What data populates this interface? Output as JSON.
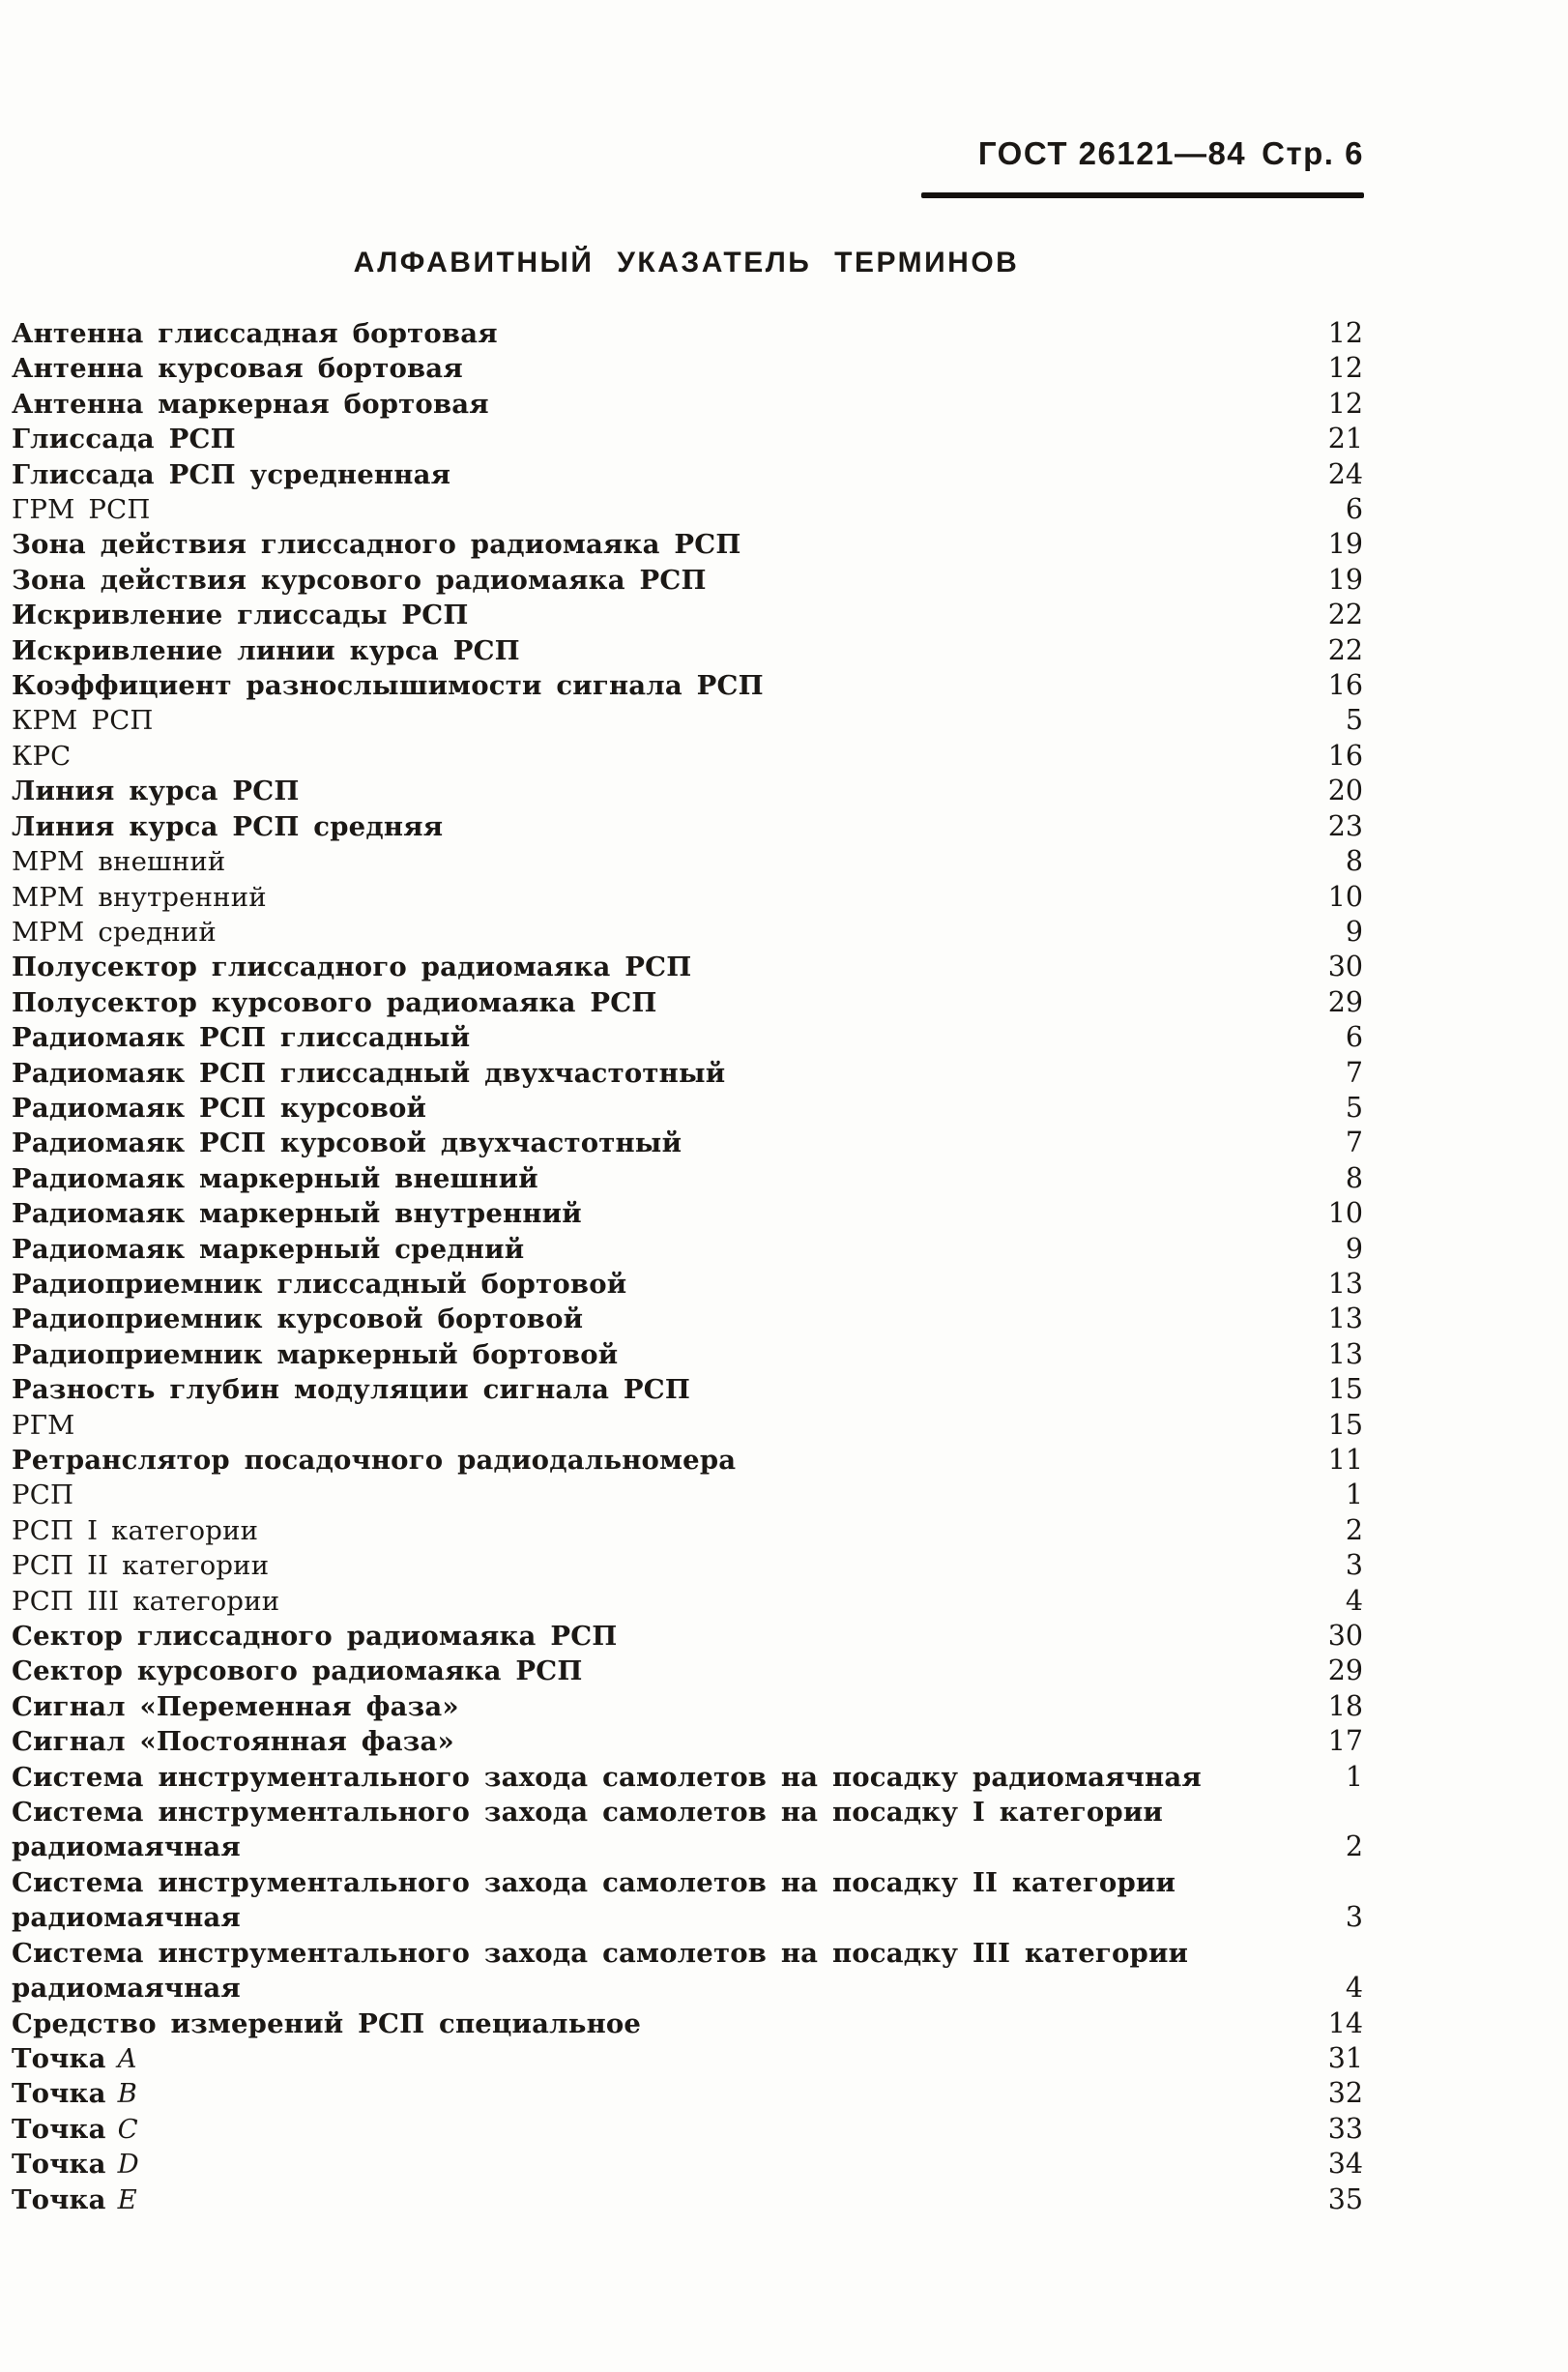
{
  "header": {
    "standard": "ГОСТ 26121—84",
    "page": "Стр. 6"
  },
  "title": "АЛФАВИТНЫЙ УКАЗАТЕЛЬ ТЕРМИНОВ",
  "colors": {
    "ink": "#1b1815",
    "paper": "#fdfdfb"
  },
  "index": {
    "entries": [
      {
        "term": "Антенна глиссадная бортовая",
        "page": "12"
      },
      {
        "term": "Антенна курсовая бортовая",
        "page": "12"
      },
      {
        "term": "Антенна маркерная бортовая",
        "page": "12"
      },
      {
        "term": "Глиссада РСП",
        "page": "21"
      },
      {
        "term": "Глиссада РСП усредненная",
        "page": "24"
      },
      {
        "term": "ГРМ РСП",
        "page": "6",
        "weight": "light"
      },
      {
        "term": "Зона действия глиссадного радиомаяка РСП",
        "page": "19"
      },
      {
        "term": "Зона действия курсового радиомаяка РСП",
        "page": "19"
      },
      {
        "term": "Искривление глиссады РСП",
        "page": "22"
      },
      {
        "term": "Искривление линии курса РСП",
        "page": "22"
      },
      {
        "term": "Коэффициент разнослышимости сигнала РСП",
        "page": "16"
      },
      {
        "term": "КРМ РСП",
        "page": "5",
        "weight": "light"
      },
      {
        "term": "КРС",
        "page": "16",
        "weight": "light"
      },
      {
        "term": "Линия курса РСП",
        "page": "20"
      },
      {
        "term": "Линия курса РСП средняя",
        "page": "23"
      },
      {
        "term": "МРМ внешний",
        "page": "8",
        "weight": "light"
      },
      {
        "term": "МРМ внутренний",
        "page": "10",
        "weight": "light"
      },
      {
        "term": "МРМ средний",
        "page": "9",
        "weight": "light"
      },
      {
        "term": "Полусектор глиссадного радиомаяка РСП",
        "page": "30"
      },
      {
        "term": "Полусектор курсового радиомаяка РСП",
        "page": "29"
      },
      {
        "term": "Радиомаяк РСП глиссадный",
        "page": "6"
      },
      {
        "term": "Радиомаяк РСП глиссадный двухчастотный",
        "page": "7"
      },
      {
        "term": "Радиомаяк РСП курсовой",
        "page": "5"
      },
      {
        "term": "Радиомаяк РСП курсовой двухчастотный",
        "page": "7"
      },
      {
        "term": "Радиомаяк маркерный внешний",
        "page": "8"
      },
      {
        "term": "Радиомаяк маркерный внутренний",
        "page": "10"
      },
      {
        "term": "Радиомаяк маркерный средний",
        "page": "9"
      },
      {
        "term": "Радиоприемник глиссадный бортовой",
        "page": "13"
      },
      {
        "term": "Радиоприемник курсовой бортовой",
        "page": "13"
      },
      {
        "term": "Радиоприемник маркерный бортовой",
        "page": "13"
      },
      {
        "term": "Разность глубин модуляции сигнала РСП",
        "page": "15"
      },
      {
        "term": "РГМ",
        "page": "15",
        "weight": "light"
      },
      {
        "term": "Ретранслятор посадочного радиодальномера",
        "page": "11"
      },
      {
        "term": "РСП",
        "page": "1",
        "weight": "light"
      },
      {
        "term": "РСП I категории",
        "page": "2",
        "weight": "light"
      },
      {
        "term": "РСП II категории",
        "page": "3",
        "weight": "light"
      },
      {
        "term": "РСП III категории",
        "page": "4",
        "weight": "light"
      },
      {
        "term": "Сектор глиссадного радиомаяка РСП",
        "page": "30"
      },
      {
        "term": "Сектор курсового радиомаяка РСП",
        "page": "29"
      },
      {
        "term": "Сигнал «Переменная фаза»",
        "page": "18"
      },
      {
        "term": "Сигнал «Постоянная фаза»",
        "page": "17"
      },
      {
        "term": "Система инструментального захода самолетов на посадку радиомаячная",
        "page": "1"
      },
      {
        "term": "Система инструментального захода самолетов на посадку I категории",
        "second_line": "радиомаячная",
        "page": "2"
      },
      {
        "term": "Система инструментального захода самолетов на посадку II категории",
        "second_line": "радиомаячная",
        "page": "3"
      },
      {
        "term": "Система инструментального захода самолетов на посадку III категории",
        "second_line": "радиомаячная",
        "page": "4"
      },
      {
        "term": "Средство измерений РСП специальное",
        "page": "14"
      },
      {
        "term": "Точка",
        "letter": "A",
        "page": "31"
      },
      {
        "term": "Точка",
        "letter": "B",
        "page": "32"
      },
      {
        "term": "Точка",
        "letter": "C",
        "page": "33"
      },
      {
        "term": "Точка",
        "letter": "D",
        "page": "34"
      },
      {
        "term": "Точка",
        "letter": "E",
        "page": "35"
      }
    ]
  }
}
